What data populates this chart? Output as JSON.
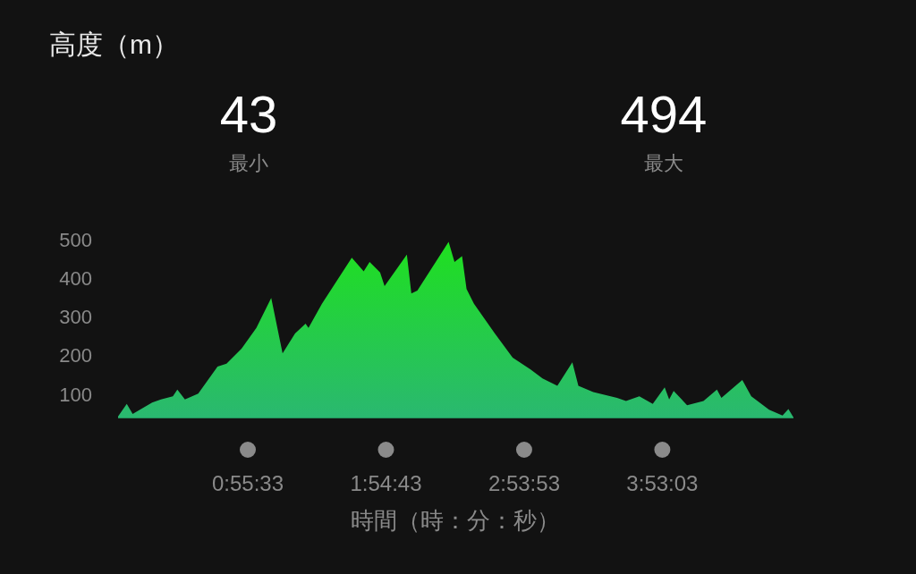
{
  "chart_data": {
    "type": "area",
    "title": "高度（m）",
    "xlabel": "時間（時：分：秒）",
    "annotations": [
      "43",
      "最小",
      "494",
      "最大"
    ],
    "x": [
      0,
      0.062,
      0.104,
      0.243,
      0.306,
      0.391,
      0.423,
      0.477,
      0.572,
      0.71,
      0.774,
      0.881,
      0.987,
      1.093,
      1.174,
      1.263,
      1.338,
      1.359,
      1.455,
      1.668,
      1.753,
      1.795,
      1.87,
      1.902,
      2.061,
      2.093,
      2.136,
      2.359,
      2.401,
      2.455,
      2.487,
      2.54,
      2.689,
      2.816,
      2.944,
      3.029,
      3.135,
      3.242,
      3.285,
      3.391,
      3.561,
      3.625,
      3.72,
      3.816,
      3.901,
      3.933,
      3.965,
      4.061,
      4.178,
      4.274,
      4.306,
      4.455,
      4.519,
      4.646,
      4.742,
      4.784,
      4.816
    ],
    "series": [
      {
        "color": "#1fe01f",
        "values": [
          43,
          75,
          49,
          79,
          87,
          95,
          112,
          87,
          102,
          172,
          179,
          218,
          272,
          349,
          206,
          257,
          283,
          272,
          334,
          453,
          418,
          442,
          415,
          380,
          461,
          361,
          368,
          494,
          442,
          457,
          372,
          334,
          257,
          195,
          164,
          141,
          122,
          183,
          122,
          106,
          91,
          83,
          95,
          75,
          118,
          87,
          109,
          72,
          83,
          112,
          91,
          137,
          95,
          60,
          45,
          62,
          43
        ]
      }
    ],
    "xlim": [
      0,
      4.82
    ],
    "ylim": [
      40,
      500
    ],
    "xticks": [
      {
        "value": 0.92583,
        "label": "0:55:33"
      },
      {
        "value": 1.91194,
        "label": "1:54:43"
      },
      {
        "value": 2.89806,
        "label": "2:53:53"
      },
      {
        "value": 3.88417,
        "label": "3:53:03"
      }
    ],
    "yticks": [
      100,
      200,
      300,
      400,
      500
    ],
    "grid": false
  }
}
